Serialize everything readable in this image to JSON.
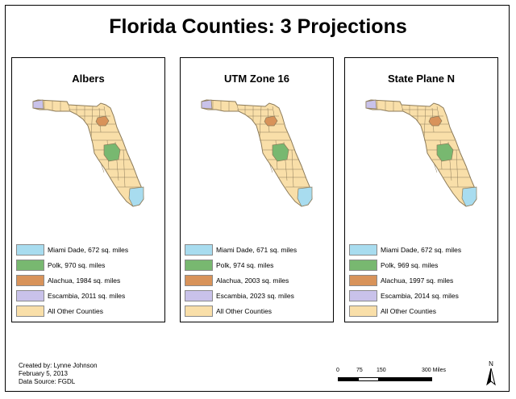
{
  "title": "Florida Counties: 3 Projections",
  "colors": {
    "miami_dade": "#a8dcef",
    "polk": "#78b870",
    "alachua": "#d8935a",
    "escambia": "#c9c2ea",
    "other": "#f9dfa9",
    "county_border": "#8c7b5a"
  },
  "panels": [
    {
      "title": "Albers",
      "legend": [
        {
          "key": "miami_dade",
          "label": "Miami Dade, 672 sq. miles"
        },
        {
          "key": "polk",
          "label": "Polk, 970 sq. miles"
        },
        {
          "key": "alachua",
          "label": "Alachua, 1984 sq. miles"
        },
        {
          "key": "escambia",
          "label": "Escambia, 2011 sq. miles"
        },
        {
          "key": "other",
          "label": "All Other Counties"
        }
      ]
    },
    {
      "title": "UTM Zone 16",
      "legend": [
        {
          "key": "miami_dade",
          "label": "Miami Dade, 671 sq. miles"
        },
        {
          "key": "polk",
          "label": "Polk, 974 sq. miles"
        },
        {
          "key": "alachua",
          "label": "Alachua, 2003 sq. miles"
        },
        {
          "key": "escambia",
          "label": "Escambia, 2023 sq. miles"
        },
        {
          "key": "other",
          "label": "All Other Counties"
        }
      ]
    },
    {
      "title": "State Plane N",
      "legend": [
        {
          "key": "miami_dade",
          "label": "Miami Dade, 672 sq. miles"
        },
        {
          "key": "polk",
          "label": "Polk, 969 sq. miles"
        },
        {
          "key": "alachua",
          "label": "Alachua, 1997 sq. miles"
        },
        {
          "key": "escambia",
          "label": "Escambia, 2014 sq. miles"
        },
        {
          "key": "other",
          "label": "All Other Counties"
        }
      ]
    }
  ],
  "credits": {
    "line1": "Created by: Lynne Johnson",
    "line2": "February 5, 2013",
    "line3": "Data Source: FGDL"
  },
  "scalebar": {
    "ticks": [
      "0",
      "75",
      "150"
    ],
    "end_label": "300 Miles"
  },
  "north_arrow": {
    "label": "N"
  }
}
